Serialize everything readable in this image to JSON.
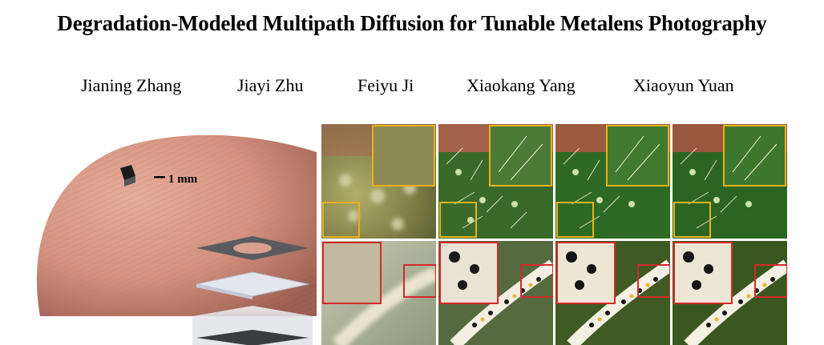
{
  "paper": {
    "title": "Degradation-Modeled Multipath Diffusion for Tunable Metalens Photography",
    "authors": [
      "Jianing Zhang",
      "Jiayi Zhu",
      "Feiyu Ji",
      "Xiaokang Yang",
      "Xiaoyun Yuan"
    ]
  },
  "figure": {
    "scale_label": "1 mm",
    "colors": {
      "skin": "#d79a8a",
      "inset_row1": "#e8b21c",
      "inset_row2": "#d42a2a"
    }
  }
}
